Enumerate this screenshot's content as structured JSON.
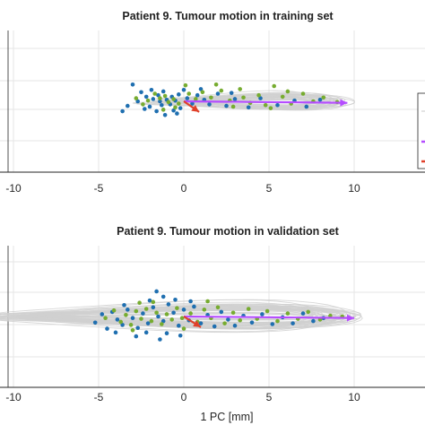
{
  "colors": {
    "trace": "#d0d0d0",
    "blue_points": "#1f6fb0",
    "green_points": "#77ac30",
    "pc1_arrow": "#b54dff",
    "pc2_arrow": "#e0402a",
    "grid": "#e6e6e6",
    "axis": "#262626"
  },
  "chart_data": [
    {
      "type": "scatter",
      "title": "Patient 9. Tumour motion in training set",
      "xlabel": "",
      "ylabel": "",
      "xlim": [
        -11,
        13
      ],
      "ylim": [
        -5,
        5
      ],
      "xticks": [
        -10,
        -5,
        0,
        5,
        10
      ],
      "xtick_labels": [
        "-10",
        "-5",
        "0",
        "5",
        "10"
      ],
      "grid": true,
      "legend_placement": "right (partially visible)",
      "arrows": [
        {
          "from": [
            0,
            0
          ],
          "to": [
            9.6,
            -0.2
          ],
          "color": "pc1"
        },
        {
          "from": [
            0,
            0
          ],
          "to": [
            0.9,
            -1.4
          ],
          "color": "pc2"
        }
      ],
      "series": [
        {
          "color": "blue",
          "points": [
            [
              -3.0,
              2.2
            ],
            [
              -2.5,
              1.2
            ],
            [
              -2.2,
              0.6
            ],
            [
              -1.8,
              0.3
            ],
            [
              -1.5,
              0.8
            ],
            [
              -1.2,
              1.3
            ],
            [
              -1.0,
              0.2
            ],
            [
              -0.8,
              -0.4
            ],
            [
              -0.5,
              0.1
            ],
            [
              -0.3,
              0.9
            ],
            [
              -0.2,
              -0.9
            ],
            [
              -1.3,
              -0.5
            ],
            [
              -1.6,
              -1.3
            ],
            [
              -2.0,
              -0.7
            ],
            [
              -2.7,
              0.0
            ],
            [
              -3.3,
              -0.6
            ],
            [
              -3.6,
              -1.3
            ],
            [
              -1.1,
              -1.8
            ],
            [
              -0.6,
              -1.2
            ],
            [
              0.2,
              0.4
            ],
            [
              0.5,
              -0.3
            ],
            [
              0.8,
              0.8
            ],
            [
              1.2,
              0.2
            ],
            [
              1.5,
              -0.4
            ],
            [
              2.0,
              1.0
            ],
            [
              2.5,
              -0.6
            ],
            [
              3.0,
              0.3
            ],
            [
              3.8,
              -0.8
            ],
            [
              4.5,
              0.4
            ],
            [
              5.5,
              -0.5
            ],
            [
              6.5,
              0.1
            ],
            [
              7.2,
              -0.7
            ],
            [
              8.0,
              0.2
            ],
            [
              -0.4,
              -1.6
            ],
            [
              -2.3,
              -1.0
            ],
            [
              0.0,
              1.5
            ],
            [
              1.0,
              1.6
            ],
            [
              2.8,
              1.1
            ],
            [
              -1.9,
              1.5
            ],
            [
              -0.7,
              0.6
            ],
            [
              -1.4,
              0.0
            ]
          ]
        },
        {
          "color": "green",
          "points": [
            [
              -2.8,
              0.4
            ],
            [
              -2.1,
              0.1
            ],
            [
              -1.7,
              1.0
            ],
            [
              -1.4,
              0.4
            ],
            [
              -1.1,
              0.7
            ],
            [
              -0.9,
              -0.1
            ],
            [
              -0.6,
              0.3
            ],
            [
              -0.3,
              -0.3
            ],
            [
              0.3,
              1.0
            ],
            [
              0.7,
              0.3
            ],
            [
              1.1,
              1.2
            ],
            [
              1.6,
              0.5
            ],
            [
              2.2,
              1.4
            ],
            [
              2.7,
              0.1
            ],
            [
              3.3,
              1.6
            ],
            [
              3.9,
              -0.2
            ],
            [
              4.4,
              0.8
            ],
            [
              5.1,
              -0.9
            ],
            [
              5.8,
              0.6
            ],
            [
              6.3,
              -0.3
            ],
            [
              7.0,
              1.0
            ],
            [
              7.6,
              0.0
            ],
            [
              8.2,
              0.5
            ],
            [
              9.0,
              -0.1
            ],
            [
              2.9,
              -0.7
            ],
            [
              4.8,
              -0.5
            ],
            [
              -2.4,
              -0.4
            ],
            [
              -0.5,
              -0.8
            ],
            [
              0.1,
              2.1
            ],
            [
              1.9,
              2.2
            ],
            [
              5.3,
              2.0
            ],
            [
              6.1,
              1.3
            ],
            [
              3.5,
              0.5
            ],
            [
              -1.2,
              -1.1
            ]
          ]
        }
      ]
    },
    {
      "type": "scatter",
      "title": "Patient 9. Tumour motion in validation set",
      "xlabel": "1 PC [mm]",
      "ylabel": "",
      "xlim": [
        -11,
        13
      ],
      "ylim": [
        -5,
        5
      ],
      "xticks": [
        -10,
        -5,
        0,
        5,
        10
      ],
      "xtick_labels": [
        "-10",
        "-5",
        "0",
        "5",
        "10"
      ],
      "grid": true,
      "arrows": [
        {
          "from": [
            0,
            0
          ],
          "to": [
            10.0,
            -0.2
          ],
          "color": "pc1"
        },
        {
          "from": [
            0,
            0
          ],
          "to": [
            1.0,
            -1.4
          ],
          "color": "pc2"
        }
      ],
      "series": [
        {
          "color": "blue",
          "points": [
            [
              -5.2,
              -0.8
            ],
            [
              -4.8,
              0.3
            ],
            [
              -4.5,
              -1.6
            ],
            [
              -4.2,
              0.6
            ],
            [
              -3.9,
              -0.4
            ],
            [
              -3.6,
              -1.1
            ],
            [
              -3.3,
              0.9
            ],
            [
              -3.0,
              -0.2
            ],
            [
              -2.7,
              -1.5
            ],
            [
              -2.4,
              0.4
            ],
            [
              -2.1,
              -0.9
            ],
            [
              -1.8,
              1.2
            ],
            [
              -1.5,
              0.0
            ],
            [
              -1.2,
              -0.6
            ],
            [
              -0.9,
              1.6
            ],
            [
              -0.6,
              0.5
            ],
            [
              -0.3,
              -1.2
            ],
            [
              0.0,
              0.9
            ],
            [
              0.3,
              -0.5
            ],
            [
              0.6,
              1.3
            ],
            [
              1.0,
              -0.9
            ],
            [
              1.4,
              0.2
            ],
            [
              1.8,
              -1.3
            ],
            [
              2.2,
              0.6
            ],
            [
              2.6,
              -0.4
            ],
            [
              3.0,
              -1.2
            ],
            [
              3.5,
              0.1
            ],
            [
              4.0,
              -0.8
            ],
            [
              4.6,
              0.3
            ],
            [
              5.2,
              -1.0
            ],
            [
              5.8,
              -0.1
            ],
            [
              6.4,
              -0.9
            ],
            [
              7.0,
              0.4
            ],
            [
              7.6,
              -0.6
            ],
            [
              8.2,
              -0.2
            ],
            [
              -2.0,
              2.1
            ],
            [
              -1.2,
              2.6
            ],
            [
              -0.5,
              2.2
            ],
            [
              -1.6,
              3.3
            ],
            [
              -2.2,
              -2.1
            ],
            [
              -2.8,
              -2.6
            ],
            [
              -1.0,
              -2.2
            ],
            [
              -3.5,
              1.5
            ],
            [
              -4.0,
              -2.1
            ],
            [
              0.4,
              2.0
            ],
            [
              -0.2,
              -2.5
            ],
            [
              -1.4,
              -3.0
            ]
          ]
        },
        {
          "color": "green",
          "points": [
            [
              -4.6,
              -0.2
            ],
            [
              -4.1,
              0.8
            ],
            [
              -3.7,
              -0.7
            ],
            [
              -3.4,
              0.2
            ],
            [
              -3.1,
              -1.1
            ],
            [
              -2.8,
              0.7
            ],
            [
              -2.5,
              -0.3
            ],
            [
              -2.2,
              1.0
            ],
            [
              -1.9,
              -0.6
            ],
            [
              -1.6,
              0.5
            ],
            [
              -1.3,
              -1.0
            ],
            [
              -1.0,
              0.3
            ],
            [
              -0.7,
              -0.4
            ],
            [
              -0.4,
              1.1
            ],
            [
              -0.1,
              -0.2
            ],
            [
              0.4,
              0.4
            ],
            [
              0.8,
              -0.7
            ],
            [
              1.2,
              0.9
            ],
            [
              1.6,
              -0.2
            ],
            [
              2.0,
              1.2
            ],
            [
              2.4,
              -0.9
            ],
            [
              2.9,
              0.5
            ],
            [
              3.3,
              -0.5
            ],
            [
              3.8,
              1.0
            ],
            [
              4.3,
              -0.3
            ],
            [
              4.9,
              0.7
            ],
            [
              5.5,
              -0.6
            ],
            [
              6.1,
              0.4
            ],
            [
              6.7,
              -0.3
            ],
            [
              7.3,
              0.6
            ],
            [
              8.0,
              -0.4
            ],
            [
              8.6,
              0.1
            ],
            [
              9.3,
              0.0
            ],
            [
              -2.6,
              1.8
            ],
            [
              -1.8,
              1.9
            ],
            [
              -3.0,
              -1.8
            ],
            [
              0.0,
              -1.6
            ],
            [
              1.4,
              2.0
            ]
          ]
        }
      ]
    }
  ]
}
